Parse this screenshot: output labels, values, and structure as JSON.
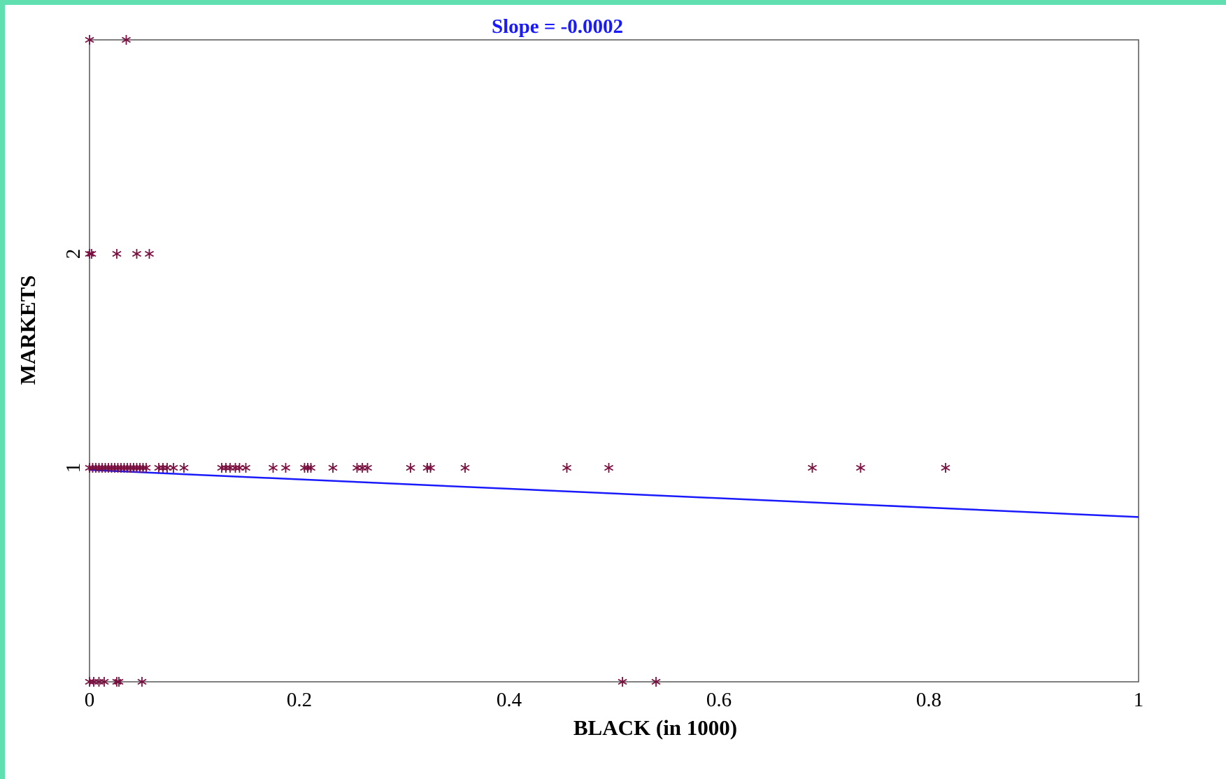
{
  "colors": {
    "frame": "#60e0b0",
    "background": "#ffffff",
    "marker": "#7a1040",
    "fit_line": "#1a1aff",
    "title": "#1a1aff",
    "axes": "#555555"
  },
  "chart_data": {
    "type": "scatter",
    "title": "Slope = -0.0002",
    "xlabel": "BLACK (in 1000)",
    "ylabel": "MARKETS",
    "xlim": [
      0,
      1
    ],
    "ylim": [
      0,
      3
    ],
    "x_ticks": [
      {
        "value": 0,
        "label": "0"
      },
      {
        "value": 0.2,
        "label": "0.2"
      },
      {
        "value": 0.4,
        "label": "0.4"
      },
      {
        "value": 0.6,
        "label": "0.6"
      },
      {
        "value": 0.8,
        "label": "0.8"
      },
      {
        "value": 1,
        "label": "1"
      }
    ],
    "y_ticks": [
      {
        "value": 1,
        "label": "1"
      },
      {
        "value": 2,
        "label": "2"
      }
    ],
    "marker": "asterisk",
    "grid": false,
    "series": [
      {
        "points": [
          [
            0.0,
            3
          ],
          [
            0.035,
            3
          ],
          [
            0.0,
            2
          ],
          [
            0.002,
            2
          ],
          [
            0.026,
            2
          ],
          [
            0.045,
            2
          ],
          [
            0.057,
            2
          ],
          [
            0.0,
            1
          ],
          [
            0.003,
            1
          ],
          [
            0.006,
            1
          ],
          [
            0.009,
            1
          ],
          [
            0.012,
            1
          ],
          [
            0.015,
            1
          ],
          [
            0.018,
            1
          ],
          [
            0.021,
            1
          ],
          [
            0.024,
            1
          ],
          [
            0.027,
            1
          ],
          [
            0.03,
            1
          ],
          [
            0.033,
            1
          ],
          [
            0.036,
            1
          ],
          [
            0.039,
            1
          ],
          [
            0.042,
            1
          ],
          [
            0.045,
            1
          ],
          [
            0.048,
            1
          ],
          [
            0.051,
            1
          ],
          [
            0.054,
            1
          ],
          [
            0.066,
            1
          ],
          [
            0.07,
            1
          ],
          [
            0.074,
            1
          ],
          [
            0.08,
            1
          ],
          [
            0.09,
            1
          ],
          [
            0.126,
            1
          ],
          [
            0.13,
            1
          ],
          [
            0.134,
            1
          ],
          [
            0.139,
            1
          ],
          [
            0.143,
            1
          ],
          [
            0.149,
            1
          ],
          [
            0.175,
            1
          ],
          [
            0.187,
            1
          ],
          [
            0.205,
            1
          ],
          [
            0.208,
            1
          ],
          [
            0.211,
            1
          ],
          [
            0.232,
            1
          ],
          [
            0.255,
            1
          ],
          [
            0.26,
            1
          ],
          [
            0.265,
            1
          ],
          [
            0.306,
            1
          ],
          [
            0.322,
            1
          ],
          [
            0.325,
            1
          ],
          [
            0.358,
            1
          ],
          [
            0.455,
            1
          ],
          [
            0.495,
            1
          ],
          [
            0.689,
            1
          ],
          [
            0.735,
            1
          ],
          [
            0.816,
            1
          ],
          [
            0.0,
            0
          ],
          [
            0.004,
            0
          ],
          [
            0.009,
            0
          ],
          [
            0.014,
            0
          ],
          [
            0.026,
            0
          ],
          [
            0.028,
            0
          ],
          [
            0.05,
            0
          ],
          [
            0.508,
            0
          ],
          [
            0.54,
            0
          ]
        ]
      },
      {
        "type": "line",
        "x": [
          0,
          1
        ],
        "y": [
          0.99,
          0.77
        ]
      }
    ]
  }
}
